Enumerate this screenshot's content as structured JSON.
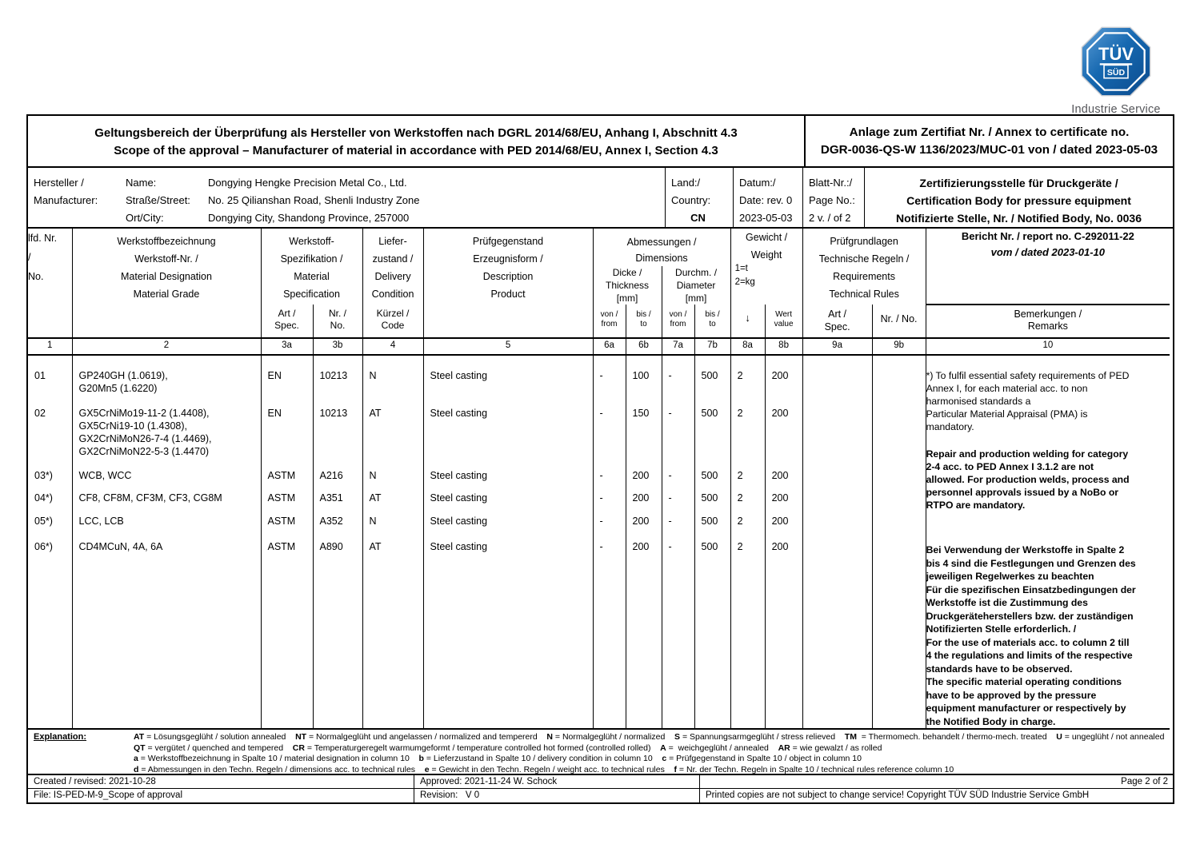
{
  "logo": {
    "line1": "TÜV",
    "line2": "SÜD",
    "subtitle": "Industrie Service",
    "blue": "#1266AE"
  },
  "title": {
    "de": "Geltungsbereich der Überprüfung als Hersteller von Werkstoffen nach DGRL 2014/68/EU, Anhang I, Abschnitt 4.3",
    "en": "Scope of the approval – Manufacturer of material in accordance with PED 2014/68/EU, Annex I, Section 4.3"
  },
  "annex": {
    "line1": "Anlage zum Zertifiat Nr. / Annex to certificate no.",
    "line2": "DGR-0036-QS-W 1136/2023/MUC-01 von / dated 2023-05-03"
  },
  "manufacturer": {
    "label": "Hersteller /\nManufacturer:",
    "fields": [
      {
        "key": "Name:",
        "value": "Dongying Hengke Precision Metal Co., Ltd."
      },
      {
        "key": "Straße/Street:",
        "value": "No. 25 Qilianshan Road, Shenli Industry Zone"
      },
      {
        "key": "Ort/City:",
        "value": "Dongying City, Shandong Province, 257000"
      }
    ],
    "country": {
      "label": "Land:/\nCountry:",
      "value": "CN"
    },
    "date": {
      "label": "Datum:/\nDate: rev. 0",
      "value": "2023-05-03"
    },
    "page": {
      "label": "Blatt-Nr.:/\nPage No.:",
      "value": "2 v. / of 2"
    },
    "cert_body": "Zertifizierungsstelle für Druckgeräte /\nCertification Body for pressure equipment\nNotifizierte Stelle, Nr. / Notified Body, No. 0036"
  },
  "table": {
    "headers": {
      "no": "lfd. Nr.\n/\nNo.",
      "designation": "Werkstoffbezeichnung\nWerkstoff-Nr. /\nMaterial Designation\nMaterial Grade",
      "spec_group": "Werkstoff-\nSpezifikation /\nMaterial\nSpecification",
      "delivery": "Liefer-\nzustand /\nDelivery\nCondition",
      "product": "Prüfgegenstand\nErzeugnisform /\nDescription\nProduct",
      "dimensions": "Abmessungen /\nDimensions",
      "thickness": "Dicke /\nThickness\n[mm]",
      "diameter": "Durchm. /\nDiameter\n[mm]",
      "weight": "Gewicht /\nWeight",
      "weight_units": "1=t\n2=kg",
      "rules": "Prüfgrundlagen\nTechnische Regeln /\nRequirements\nTechnical Rules",
      "report": "Bericht Nr. / report no. C-292011-22",
      "report_date": "vom / dated 2023-01-10",
      "spec_art": "Art /\nSpec.",
      "spec_nr": "Nr. /\nNo.",
      "code": "Kürzel /\nCode",
      "from": "von /\nfrom",
      "to": "bis /\nto",
      "arrow": "↓",
      "value": "Wert\nvalue",
      "rules_art": "Art /\nSpec.",
      "rules_nr": "Nr. / No.",
      "remarks_hdr": "Bemerkungen /\nRemarks"
    },
    "col_numbers": [
      "1",
      "2",
      "3a",
      "3b",
      "4",
      "5",
      "6a",
      "6b",
      "7a",
      "7b",
      "8a",
      "8b",
      "9a",
      "9b",
      "10"
    ],
    "rows": [
      {
        "no": "01",
        "materials": "GP240GH (1.0619),\nG20Mn5 (1.6220)",
        "spec": "EN",
        "specno": "10213",
        "cond": "N",
        "product": "Steel casting",
        "t_from": "-",
        "t_to": "100",
        "d_from": "-",
        "d_to": "500",
        "w_unit": "2",
        "w_val": "200"
      },
      {
        "no": "02",
        "materials": "GX5CrNiMo19-11-2 (1.4408),\nGX5CrNi19-10 (1.4308),\nGX2CrNiMoN26-7-4 (1.4469),\nGX2CrNiMoN22-5-3 (1.4470)",
        "spec": "EN",
        "specno": "10213",
        "cond": "AT",
        "product": "Steel casting",
        "t_from": "-",
        "t_to": "150",
        "d_from": "-",
        "d_to": "500",
        "w_unit": "2",
        "w_val": "200"
      },
      {
        "no": "03*)",
        "materials": "WCB, WCC",
        "spec": "ASTM",
        "specno": "A216",
        "cond": "N",
        "product": "Steel casting",
        "t_from": "-",
        "t_to": "200",
        "d_from": "-",
        "d_to": "500",
        "w_unit": "2",
        "w_val": "200"
      },
      {
        "no": "04*)",
        "materials": "CF8, CF8M, CF3M, CF3, CG8M",
        "spec": "ASTM",
        "specno": "A351",
        "cond": "AT",
        "product": "Steel casting",
        "t_from": "-",
        "t_to": "200",
        "d_from": "-",
        "d_to": "500",
        "w_unit": "2",
        "w_val": "200"
      },
      {
        "no": "05*)",
        "materials": "LCC, LCB",
        "spec": "ASTM",
        "specno": "A352",
        "cond": "N",
        "product": "Steel casting",
        "t_from": "-",
        "t_to": "200",
        "d_from": "-",
        "d_to": "500",
        "w_unit": "2",
        "w_val": "200"
      },
      {
        "no": "06*)",
        "materials": "CD4MCuN, 4A, 6A",
        "spec": "ASTM",
        "specno": "A890",
        "cond": "AT",
        "product": "Steel casting",
        "t_from": "-",
        "t_to": "200",
        "d_from": "-",
        "d_to": "500",
        "w_unit": "2",
        "w_val": "200"
      }
    ],
    "remarks": {
      "p1": "*) To fulfil essential safety requirements of PED\nAnnex I, for each material acc. to non\nharmonised standards a\nParticular Material Appraisal (PMA) is\nmandatory.",
      "p2": "Repair and production welding for category\n2-4 acc. to PED Annex I 3.1.2 are not\nallowed. For production welds, process and\npersonnel approvals issued by a NoBo or\nRTPO are mandatory.",
      "p3": "Bei Verwendung der Werkstoffe in Spalte 2\nbis 4 sind die Festlegungen und Grenzen des\njeweiligen Regelwerkes zu beachten\nFür die spezifischen Einsatzbedingungen der\nWerkstoffe ist die Zustimmung des\nDruckgeräteherstellers bzw. der zuständigen\nNotifizierten Stelle erforderlich. /\nFor the use of materials acc. to column 2 till\n4 the regulations and limits of the respective\nstandards have to be observed.\nThe specific material operating conditions\nhave to be approved by the pressure\nequipment manufacturer or respectively by\nthe Notified Body in charge."
    }
  },
  "explanation": {
    "label": "Explanation:",
    "lines": [
      [
        [
          "AT",
          1
        ],
        [
          " = Lösungsgeglüht / solution annealed    ",
          0
        ],
        [
          "NT",
          1
        ],
        [
          " = Normalgeglüht und angelassen / normalized and tempererd    ",
          0
        ],
        [
          "N",
          1
        ],
        [
          " = Normalgeglüht / normalized    ",
          0
        ],
        [
          "S",
          1
        ],
        [
          " = Spannungsarmgeglüht / stress relieved    ",
          0
        ],
        [
          "TM",
          1
        ],
        [
          "  = Thermomech. behandelt / thermo-mech. treated    ",
          0
        ],
        [
          "U",
          1
        ],
        [
          " = ungeglüht / not annealed",
          0
        ]
      ],
      [
        [
          "QT",
          1
        ],
        [
          " = vergütet / quenched and tempered    ",
          0
        ],
        [
          "CR",
          1
        ],
        [
          " = Temperaturgeregelt warmumgeformt / temperature controlled hot formed (controlled rolled)    ",
          0
        ],
        [
          "A",
          1
        ],
        [
          " =  weichgeglüht / annealed    ",
          0
        ],
        [
          "AR",
          1
        ],
        [
          " = wie gewalzt / as rolled",
          0
        ]
      ],
      [
        [
          "a",
          1
        ],
        [
          " = Werkstoffbezeichnung in Spalte 10 / material designation in column 10    ",
          0
        ],
        [
          "b",
          1
        ],
        [
          " = Lieferzustand in Spalte 10 / delivery condition in column 10    ",
          0
        ],
        [
          "c",
          1
        ],
        [
          " = Prüfgegenstand in Spalte 10 / object in column 10",
          0
        ]
      ],
      [
        [
          "d",
          1
        ],
        [
          " = Abmessungen in den Techn. Regeln / dimensions acc. to technical rules    ",
          0
        ],
        [
          "e",
          1
        ],
        [
          " = Gewicht in den Techn. Regeln / weight acc. to technical rules    ",
          0
        ],
        [
          "f",
          1
        ],
        [
          " = Nr. der Techn. Regeln in Spalte 10 / technical rules reference column 10",
          0
        ]
      ]
    ]
  },
  "footer": {
    "created": "Created / revised: 2021-10-28",
    "approved": "Approved: 2021-11-24 W. Schock",
    "page": "Page 2 of 2",
    "file": "File: IS-PED-M-9_Scope of approval",
    "revision": "Revision:   V 0",
    "copyright": "Printed copies are not subject to change service! Copyright TÜV SÜD Industrie Service GmbH"
  }
}
